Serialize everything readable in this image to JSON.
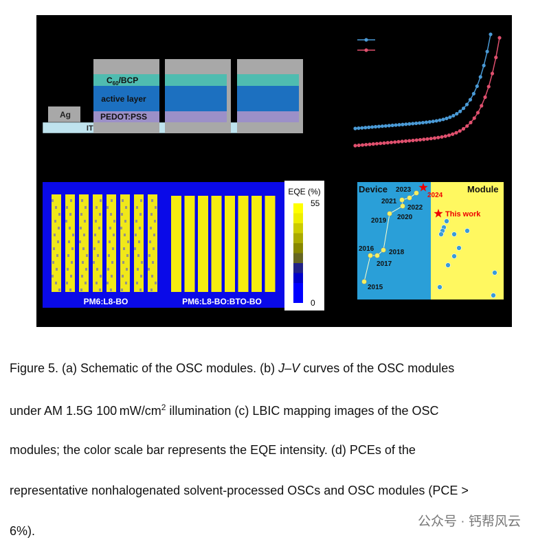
{
  "figure": {
    "schematic": {
      "cbl_main": "C",
      "cbl_sub": "60",
      "cbl_rest": "/BCP",
      "active": "active layer",
      "htl": "PEDOT:PSS",
      "electrode": "Ag",
      "substrate": "ITO"
    },
    "lbic": {
      "left_label": "PM6:L8-BO",
      "right_label": "PM6:L8-BO:BTO-BO",
      "scale_title": "EQE (%)",
      "scale_max": "55",
      "scale_min": "0"
    },
    "pce": {
      "device": "Device",
      "module": "Module",
      "this_work": "This work",
      "years": [
        "2015",
        "2016",
        "2017",
        "2018",
        "2019",
        "2020",
        "2021",
        "2022",
        "2023",
        "2024"
      ]
    }
  },
  "caption": {
    "l1a": "Figure 5. (a) Schematic of the OSC modules. (b) ",
    "l1i": "J–V",
    "l1b": " curves of the OSC modules",
    "l2a": "under AM 1.5G 100 mW/cm",
    "l2sup": "2",
    "l2b": " illumination (c) LBIC mapping images of the OSC",
    "l3": "modules; the color scale bar represents the EQE intensity. (d) PCEs of the",
    "l4": "representative nonhalogenated solvent-processed OSCs and OSC modules (PCE >",
    "l5": "6%)."
  },
  "watermark": "公众号 · 钙帮风云"
}
